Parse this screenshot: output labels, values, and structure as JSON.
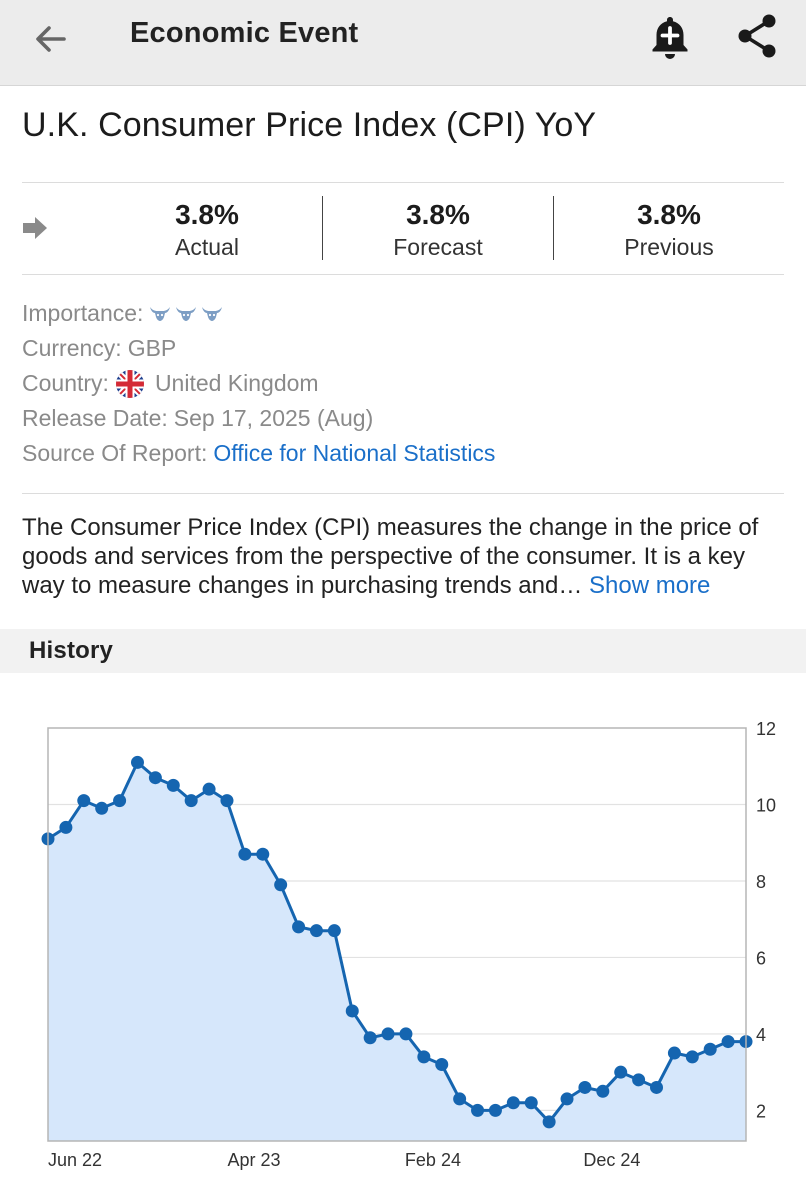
{
  "header": {
    "title": "Economic Event",
    "icons": [
      "back-arrow-icon",
      "add-alert-bell-icon",
      "share-icon"
    ]
  },
  "event": {
    "title": "U.K. Consumer Price Index (CPI) YoY",
    "trend_icon": "arrow-right-icon"
  },
  "stats": [
    {
      "value": "3.8%",
      "label": "Actual"
    },
    {
      "value": "3.8%",
      "label": "Forecast"
    },
    {
      "value": "3.8%",
      "label": "Previous"
    }
  ],
  "info": {
    "importance_label": "Importance:",
    "importance_level": 3,
    "currency_label": "Currency:",
    "currency_value": "GBP",
    "country_label": "Country:",
    "country_value": "United Kingdom",
    "release_label": "Release Date:",
    "release_value": "Sep 17, 2025 (Aug)",
    "source_label": "Source Of Report:",
    "source_value": "Office for National Statistics"
  },
  "description": {
    "text": "The Consumer Price Index (CPI) measures the change in the price of goods and services from the perspective of the consumer. It is a key way to measure changes in purchasing trends and…",
    "more_label": "Show more"
  },
  "history": {
    "title": "History"
  },
  "colors": {
    "accent": "#1a6fc9",
    "line": "#1565b0",
    "area": "#d6e7fb"
  },
  "chart_data": {
    "type": "area",
    "x_tick_labels": [
      "Jun 22",
      "Apr 23",
      "Feb 24",
      "Dec 24"
    ],
    "x_tick_indices": [
      0,
      10,
      20,
      30
    ],
    "y_tick_labels": [
      "2",
      "4",
      "6",
      "8",
      "10",
      "12"
    ],
    "ylim": [
      1.2,
      12
    ],
    "y_axis_side": "right",
    "grid": true,
    "series": [
      {
        "values": [
          9.1,
          9.4,
          10.1,
          9.9,
          10.1,
          11.1,
          10.7,
          10.5,
          10.1,
          10.4,
          10.1,
          8.7,
          8.7,
          7.9,
          6.8,
          6.7,
          6.7,
          4.6,
          3.9,
          4.0,
          4.0,
          3.4,
          3.2,
          2.3,
          2.0,
          2.0,
          2.2,
          2.2,
          1.7,
          2.3,
          2.6,
          2.5,
          3.0,
          2.8,
          2.6,
          3.5,
          3.4,
          3.6,
          3.8,
          3.8
        ]
      }
    ]
  }
}
